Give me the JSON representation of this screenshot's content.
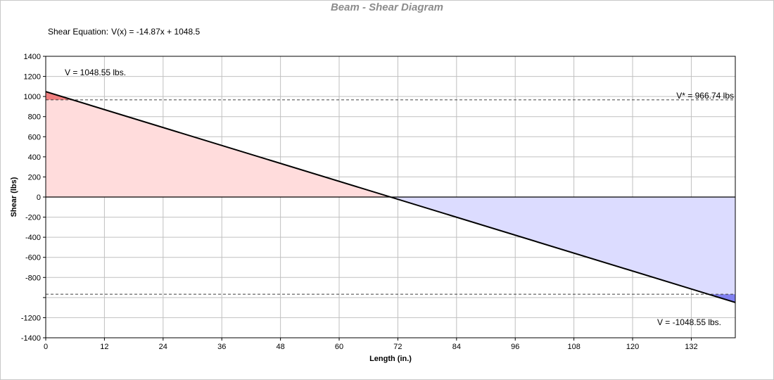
{
  "chart_data": {
    "type": "area",
    "title": "Beam - Shear Diagram",
    "equation_label": "Shear Equation:",
    "equation": "V(x) = -14.87x + 1048.5",
    "xlabel": "Length (in.)",
    "ylabel": "Shear (lbs)",
    "xlim": [
      0,
      141
    ],
    "ylim": [
      -1400,
      1400
    ],
    "x_ticks": [
      0,
      12,
      24,
      36,
      48,
      60,
      72,
      84,
      96,
      108,
      120,
      132
    ],
    "x_tick_labels": [
      "0",
      "12",
      "24",
      "36",
      "48",
      "60",
      "72",
      "84",
      "96",
      "108",
      "120",
      "132"
    ],
    "y_ticks": [
      -1400,
      -1200,
      -1000,
      -800,
      -600,
      -400,
      -200,
      0,
      200,
      400,
      600,
      800,
      1000,
      1200,
      1400
    ],
    "y_tick_labels": [
      "-1400",
      "-1200",
      "",
      "-800",
      "-600",
      "-400",
      "-200",
      "0",
      "200",
      "400",
      "600",
      "800",
      "1000",
      "1200",
      "1400"
    ],
    "grid": true,
    "series": [
      {
        "x": [
          0,
          141
        ],
        "y": [
          1048.55,
          -1048.55
        ],
        "color": "#000000"
      }
    ],
    "positive_fill": "#ffdcdc",
    "negative_fill": "#dcdcff",
    "exceed_positive_fill": "#f08080",
    "exceed_negative_fill": "#8080f0",
    "allowable": 966.74,
    "annotations": {
      "v_start": "V = 1048.55 lbs.",
      "v_end": "V = -1048.55 lbs.",
      "v_allow": "V* = 966.74 lbs"
    }
  }
}
